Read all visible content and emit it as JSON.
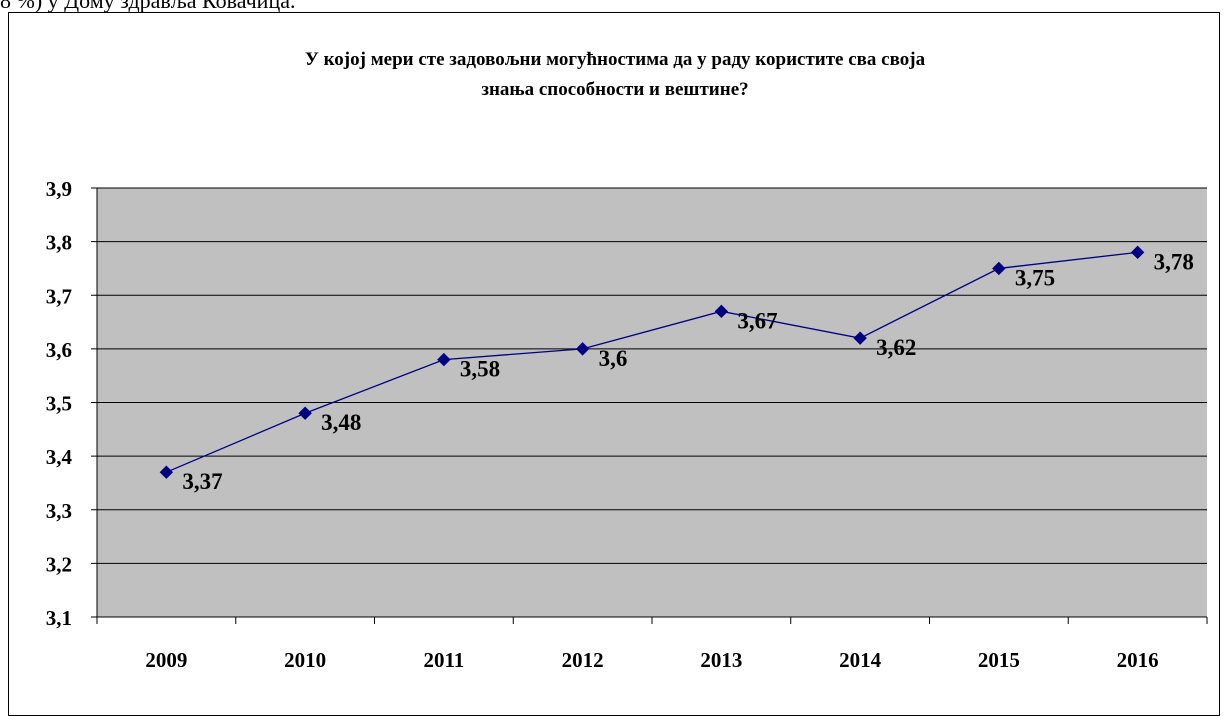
{
  "page": {
    "top_text": "8 %) у Дому здравља Ковачица."
  },
  "chart_data": {
    "type": "line",
    "title_lines": [
      "У којој мери сте задовољни могућностима да у раду користите сва своја",
      "знања способности и вештине?"
    ],
    "categories": [
      "2009",
      "2010",
      "2011",
      "2012",
      "2013",
      "2014",
      "2015",
      "2016"
    ],
    "series": [
      {
        "values": [
          3.37,
          3.48,
          3.58,
          3.6,
          3.67,
          3.62,
          3.75,
          3.78
        ],
        "labels": [
          "3,37",
          "3,48",
          "3,58",
          "3,6",
          "3,67",
          "3,62",
          "3,75",
          "3,78"
        ],
        "color": "#000080"
      }
    ],
    "y_ticks": [
      3.9,
      3.8,
      3.7,
      3.6,
      3.5,
      3.4,
      3.3,
      3.2,
      3.1
    ],
    "y_tick_labels": [
      "3,9",
      "3,8",
      "3,7",
      "3,6",
      "3,5",
      "3,4",
      "3,3",
      "3,2",
      "3,1"
    ],
    "ylim": [
      3.1,
      3.9
    ],
    "grid": true,
    "plot_background": "#c0c0c0",
    "legend": "none"
  }
}
